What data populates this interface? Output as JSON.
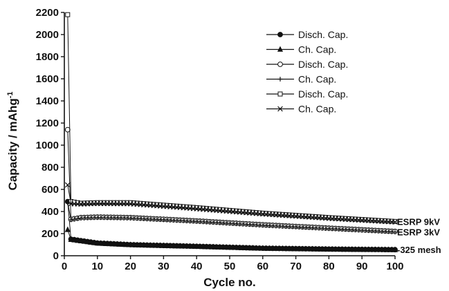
{
  "chart_data": {
    "type": "line",
    "xlabel": "Cycle no.",
    "ylabel": "Capacity / mAhg",
    "ylabel_superscript": "-1",
    "xlim": [
      0,
      100
    ],
    "ylim": [
      0,
      2200
    ],
    "xticks": [
      0,
      10,
      20,
      30,
      40,
      50,
      60,
      70,
      80,
      90,
      100
    ],
    "yticks": [
      0,
      200,
      400,
      600,
      800,
      1000,
      1200,
      1400,
      1600,
      1800,
      2000,
      2200
    ],
    "grid": false,
    "legend_position": "top-right",
    "legend": [
      {
        "label": "Disch. Cap.",
        "marker": "filled-circle"
      },
      {
        "label": "Ch. Cap.",
        "marker": "filled-triangle"
      },
      {
        "label": "Disch. Cap.",
        "marker": "open-circle"
      },
      {
        "label": "Ch. Cap.",
        "marker": "plus"
      },
      {
        "label": "Disch. Cap.",
        "marker": "open-square"
      },
      {
        "label": "Ch. Cap.",
        "marker": "cross"
      }
    ],
    "series_labels": [
      {
        "text": "ESRP 9kV",
        "anchor_value": 310
      },
      {
        "text": "ESRP 3kV",
        "anchor_value": 215
      },
      {
        "text": "-325 mesh",
        "anchor_value": 55
      }
    ],
    "series": [
      {
        "marker": "filled-circle",
        "key_points": [
          [
            1,
            490
          ],
          [
            2,
            150
          ],
          [
            10,
            115
          ],
          [
            20,
            100
          ],
          [
            40,
            85
          ],
          [
            60,
            68
          ],
          [
            80,
            60
          ],
          [
            100,
            55
          ]
        ]
      },
      {
        "marker": "filled-triangle",
        "key_points": [
          [
            1,
            235
          ],
          [
            2,
            145
          ],
          [
            10,
            112
          ],
          [
            20,
            98
          ],
          [
            40,
            83
          ],
          [
            60,
            66
          ],
          [
            80,
            58
          ],
          [
            100,
            53
          ]
        ]
      },
      {
        "marker": "open-circle",
        "key_points": [
          [
            1,
            1140
          ],
          [
            2,
            330
          ],
          [
            5,
            345
          ],
          [
            10,
            350
          ],
          [
            20,
            345
          ],
          [
            40,
            315
          ],
          [
            60,
            280
          ],
          [
            80,
            250
          ],
          [
            100,
            220
          ]
        ]
      },
      {
        "marker": "plus",
        "key_points": [
          [
            1,
            480
          ],
          [
            2,
            325
          ],
          [
            5,
            340
          ],
          [
            10,
            345
          ],
          [
            20,
            340
          ],
          [
            40,
            310
          ],
          [
            60,
            275
          ],
          [
            80,
            245
          ],
          [
            100,
            215
          ]
        ]
      },
      {
        "marker": "open-square",
        "key_points": [
          [
            1,
            2180
          ],
          [
            2,
            490
          ],
          [
            5,
            475
          ],
          [
            10,
            480
          ],
          [
            20,
            480
          ],
          [
            40,
            435
          ],
          [
            60,
            385
          ],
          [
            80,
            345
          ],
          [
            100,
            310
          ]
        ]
      },
      {
        "marker": "cross",
        "key_points": [
          [
            1,
            640
          ],
          [
            2,
            470
          ],
          [
            5,
            468
          ],
          [
            10,
            472
          ],
          [
            20,
            470
          ],
          [
            40,
            425
          ],
          [
            60,
            378
          ],
          [
            80,
            338
          ],
          [
            100,
            305
          ]
        ]
      }
    ]
  }
}
